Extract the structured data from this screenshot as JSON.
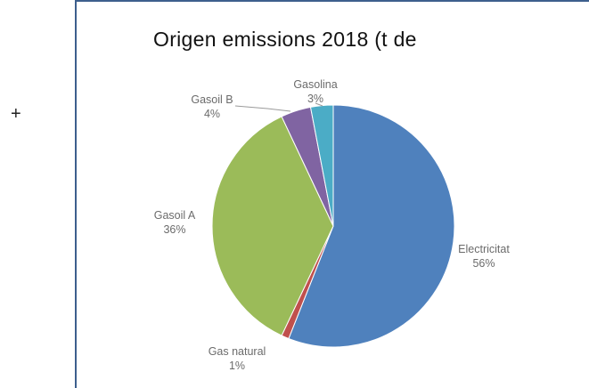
{
  "left_mark": "+",
  "chart_data": {
    "type": "pie",
    "title": "Origen emissions 2018 (t de",
    "slices": [
      {
        "label": "Electricitat",
        "value": 56,
        "value_label": "56%",
        "color": "#4f81bd"
      },
      {
        "label": "Gas natural",
        "value": 1,
        "value_label": "1%",
        "color": "#c0504d"
      },
      {
        "label": "Gasoil A",
        "value": 36,
        "value_label": "36%",
        "color": "#9bbb59"
      },
      {
        "label": "Gasoil B",
        "value": 4,
        "value_label": "4%",
        "color": "#8064a2"
      },
      {
        "label": "Gasolina",
        "value": 3,
        "value_label": "3%",
        "color": "#4bacc6"
      }
    ],
    "legend": "none",
    "label_placement": "outside"
  }
}
